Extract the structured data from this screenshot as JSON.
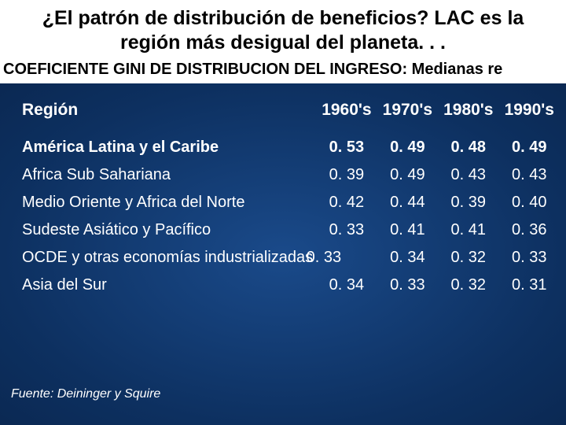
{
  "title": "¿El patrón de distribución de beneficios? LAC es la región más desigual del planeta. . .",
  "subtitle": "COEFICIENTE GINI DE DISTRIBUCION DEL INGRESO: Medianas re",
  "table": {
    "region_header": "Región",
    "columns": [
      "1960's",
      "1970's",
      "1980's",
      "1990's"
    ],
    "rows": [
      {
        "region": "América Latina y el Caribe",
        "bold": true,
        "values": [
          "0. 53",
          "0. 49",
          "0. 48",
          "0. 49"
        ]
      },
      {
        "region": "Africa Sub Sahariana",
        "bold": false,
        "values": [
          "0. 39",
          "0. 49",
          "0. 43",
          "0. 43"
        ]
      },
      {
        "region": "Medio Oriente y Africa del Norte",
        "bold": false,
        "values": [
          "0. 42",
          "0. 44",
          "0. 39",
          "0. 40"
        ]
      },
      {
        "region": "Sudeste Asiático y Pacífico",
        "bold": false,
        "values": [
          "0. 33",
          "0. 41",
          "0. 41",
          "0. 36"
        ]
      },
      {
        "region": "OCDE y otras economías industrializadas",
        "bold": false,
        "ocde": true,
        "ocde_overlap": "0. 33",
        "values": [
          "",
          "0. 34",
          "0. 32",
          "0. 33"
        ]
      },
      {
        "region": "Asia del Sur",
        "bold": false,
        "values": [
          "0. 34",
          "0. 33",
          "0. 32",
          "0. 31"
        ]
      }
    ]
  },
  "source": "Fuente:  Deininger y Squire"
}
